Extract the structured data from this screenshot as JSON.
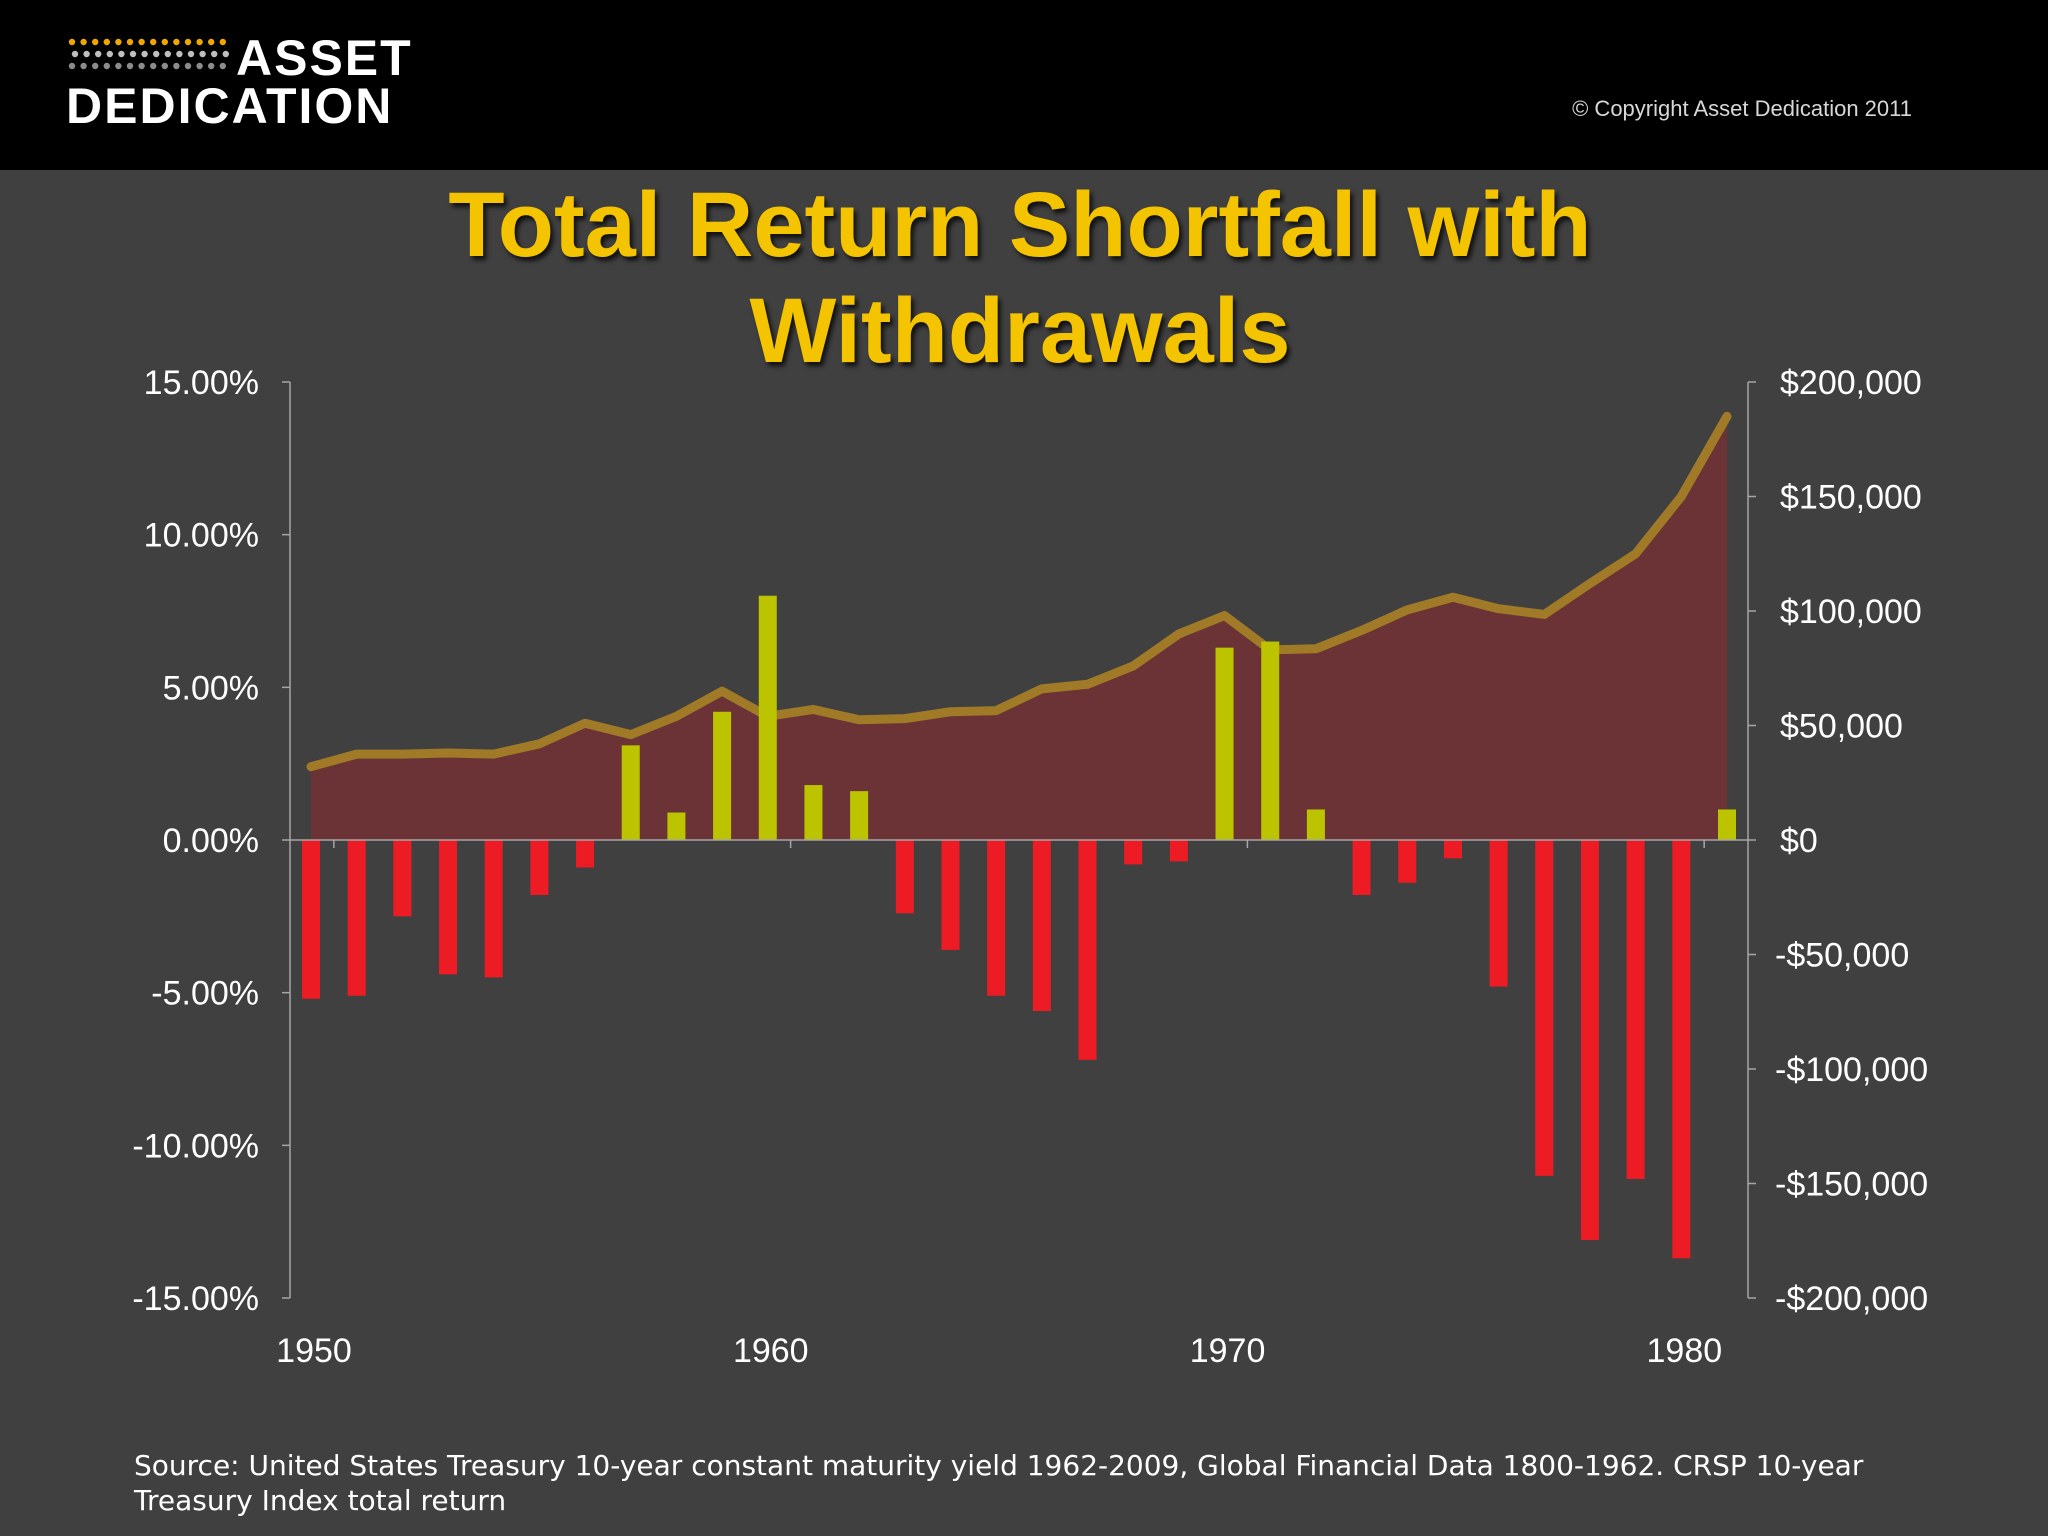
{
  "header": {
    "logo_line1": "ASSET",
    "logo_line2": "DEDICATION",
    "copyright": "© Copyright Asset Dedication 2011"
  },
  "colors": {
    "background": "#404041",
    "title": "#f5c400",
    "positive_bar": "#bcc400",
    "negative_bar": "#ed1c24",
    "area_fill": "#6b3336",
    "area_line": "#a07a27",
    "axis_text": "#ffffff"
  },
  "chart_data": {
    "type": "bar",
    "title": "Total Return Shortfall with Withdrawals",
    "y_left": {
      "ticks": [
        "15.00%",
        "10.00%",
        "5.00%",
        "0.00%",
        "-5.00%",
        "-10.00%",
        "-15.00%"
      ],
      "ylim": [
        -15,
        15
      ]
    },
    "y_right": {
      "ticks": [
        "$200,000",
        "$150,000",
        "$100,000",
        "$50,000",
        "$0",
        "-$50,000",
        "-$100,000",
        "-$150,000",
        "-$200,000"
      ],
      "ylim": [
        -200000,
        200000
      ]
    },
    "x_ticks": [
      "1950",
      "1960",
      "1970",
      "1980"
    ],
    "x": [
      1950,
      1951,
      1952,
      1953,
      1954,
      1955,
      1956,
      1957,
      1958,
      1959,
      1960,
      1961,
      1962,
      1963,
      1964,
      1965,
      1966,
      1967,
      1968,
      1969,
      1970,
      1971,
      1972,
      1973,
      1974,
      1975,
      1976,
      1977,
      1978,
      1979,
      1980,
      1981
    ],
    "series": [
      {
        "axis": "left",
        "type": "bar",
        "values": [
          -5.2,
          -5.1,
          -2.5,
          -4.4,
          -4.5,
          -1.8,
          -0.9,
          3.1,
          0.9,
          4.2,
          8.0,
          1.8,
          1.6,
          -2.4,
          -3.6,
          -5.1,
          -5.6,
          -7.2,
          -0.8,
          -0.7,
          6.3,
          6.5,
          1.0,
          -1.8,
          -1.4,
          -0.6,
          -4.8,
          -11.0,
          -13.1,
          -11.1,
          -13.7,
          1.0
        ]
      },
      {
        "axis": "right",
        "type": "area",
        "values": [
          32000,
          37500,
          37500,
          38000,
          37500,
          42000,
          51000,
          46000,
          54000,
          65000,
          54000,
          57000,
          52500,
          53000,
          56000,
          56500,
          66000,
          68000,
          76000,
          90000,
          98000,
          83000,
          83500,
          91500,
          100500,
          106000,
          101000,
          98500,
          112000,
          125000,
          150000,
          185000
        ]
      }
    ]
  },
  "source": "Source: United States Treasury 10-year constant maturity yield 1962-2009, Global Financial Data 1800-1962. CRSP 10-year Treasury  Index total return"
}
